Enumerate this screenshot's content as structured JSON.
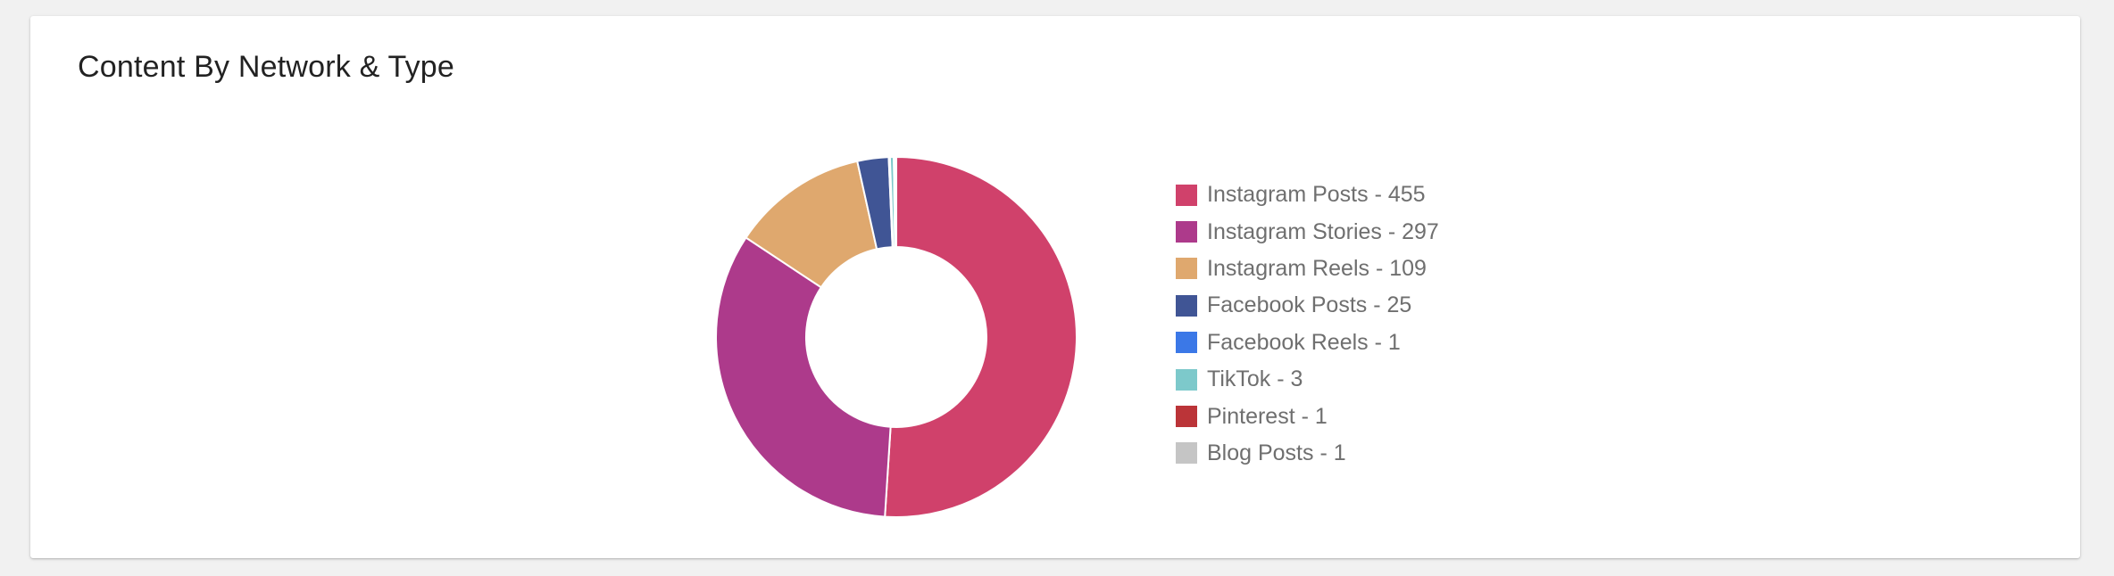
{
  "card": {
    "title": "Content By Network & Type"
  },
  "chart_data": {
    "type": "pie",
    "donut": true,
    "legend_position": "right",
    "series": [
      {
        "name": "Instagram Posts",
        "value": 455,
        "color": "#d0416b"
      },
      {
        "name": "Instagram Stories",
        "value": 297,
        "color": "#ad3a8b"
      },
      {
        "name": "Instagram Reels",
        "value": 109,
        "color": "#dfa86e"
      },
      {
        "name": "Facebook Posts",
        "value": 25,
        "color": "#405595"
      },
      {
        "name": "Facebook Reels",
        "value": 1,
        "color": "#3b78e7"
      },
      {
        "name": "TikTok",
        "value": 3,
        "color": "#7dc9cb"
      },
      {
        "name": "Pinterest",
        "value": 1,
        "color": "#bb3438"
      },
      {
        "name": "Blog Posts",
        "value": 1,
        "color": "#c5c5c5"
      }
    ]
  }
}
